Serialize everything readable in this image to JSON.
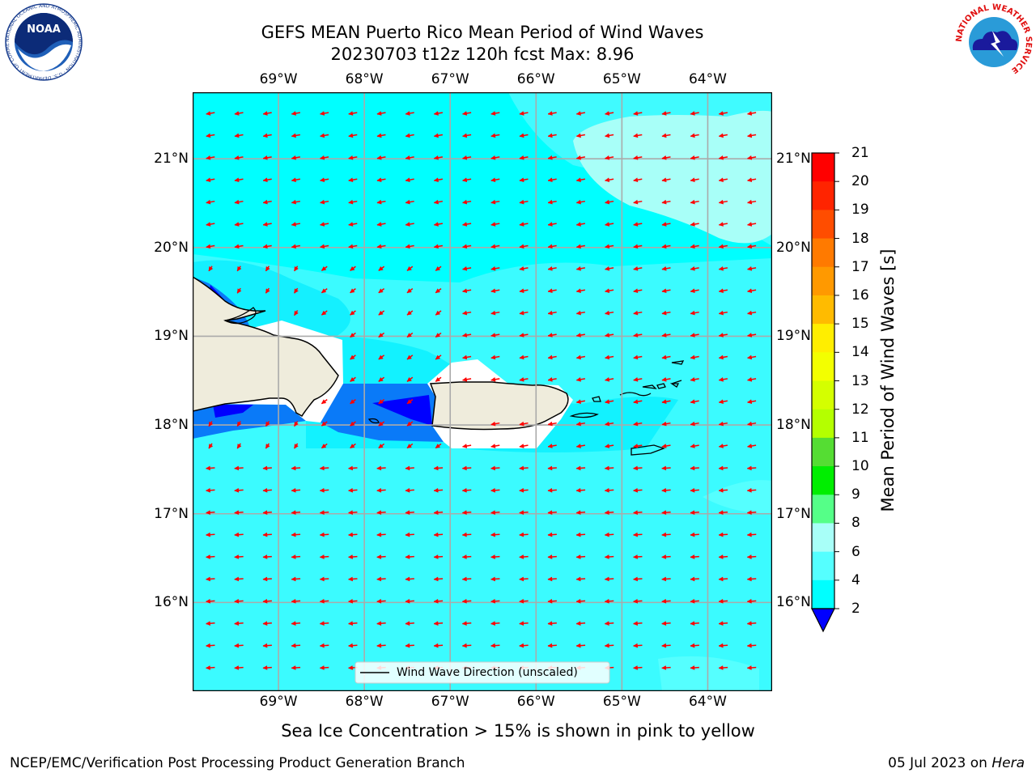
{
  "title_line1": "GEFS MEAN Puerto Rico Mean Period of Wind Waves",
  "title_line2": "20230703 t12z 120h fcst   Max: 8.96",
  "map": {
    "lon_ticks": [
      "69°W",
      "68°W",
      "67°W",
      "66°W",
      "65°W",
      "64°W"
    ],
    "lat_ticks": [
      "21°N",
      "20°N",
      "19°N",
      "18°N",
      "17°N",
      "16°N"
    ],
    "lon_values": [
      -69,
      -68,
      -67,
      -66,
      -65,
      -64
    ],
    "lat_values": [
      21,
      20,
      19,
      18,
      17,
      16
    ],
    "lon_range": [
      -70.0,
      -63.25
    ],
    "lat_range": [
      15.0,
      21.75
    ],
    "legend_label": "Wind Wave Direction (unscaled)",
    "arrow_color": "#ff0000",
    "land_color": "#efecdc",
    "ocean_color": "#33ffff"
  },
  "colorbar": {
    "title": "Mean Period of Wind Waves [s]",
    "labels": [
      "21",
      "20",
      "19",
      "18",
      "17",
      "16",
      "15",
      "14",
      "13",
      "12",
      "11",
      "10",
      "9",
      "8",
      "6",
      "4",
      "2"
    ],
    "colors": [
      "#ff0000",
      "#ff2400",
      "#ff4d00",
      "#ff7a00",
      "#ff9900",
      "#ffbb00",
      "#ffee00",
      "#f3ff00",
      "#d4ff00",
      "#b4ff00",
      "#55dd33",
      "#00ee00",
      "#55ff88",
      "#a8fff8",
      "#55ffff",
      "#00ffff",
      "#0a7af8"
    ],
    "under_color": "#0000ff"
  },
  "note": "Sea Ice Concentration > 15% is shown in pink to yellow",
  "footer_left": "NCEP/EMC/Verification Post Processing Product Generation Branch",
  "footer_date": "05 Jul 2023 on",
  "footer_host": "Hera",
  "logos": {
    "noaa_text": "NOAA",
    "noaa_ring": "NATIONAL OCEANIC AND ATMOSPHERIC ADMINISTRATION · U.S. DEPARTMENT OF COMMERCE",
    "nws_ring": "NATIONAL WEATHER SERVICE"
  }
}
